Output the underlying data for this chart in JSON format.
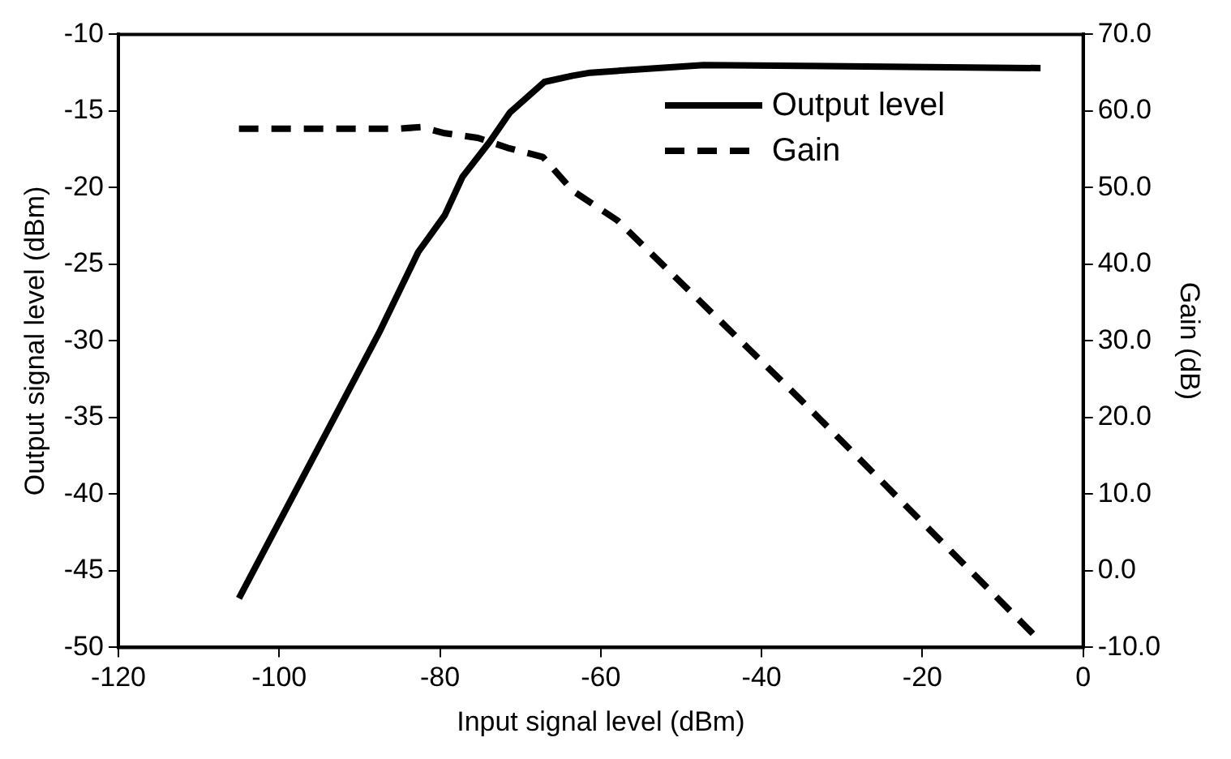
{
  "chart_data": {
    "type": "line",
    "xlabel": "Input signal level (dBm)",
    "ylabel": "Output signal level (dBm)",
    "y2label": "Gain (dB)",
    "xlim": [
      -120,
      0
    ],
    "xticks": [
      -120,
      -100,
      -80,
      -60,
      -40,
      -20,
      0
    ],
    "ylim": [
      -50,
      -10
    ],
    "yticks": [
      -50,
      -45,
      -40,
      -35,
      -30,
      -25,
      -20,
      -15,
      -10
    ],
    "y2lim": [
      -10,
      70
    ],
    "y2ticks": [
      {
        "value": -10,
        "label": "-10.0"
      },
      {
        "value": 0,
        "label": "0.0"
      },
      {
        "value": 10,
        "label": "10.0"
      },
      {
        "value": 20,
        "label": "20.0"
      },
      {
        "value": 30,
        "label": "30.0"
      },
      {
        "value": 40,
        "label": "40.0"
      },
      {
        "value": 50,
        "label": "50.0"
      },
      {
        "value": 60,
        "label": "60.0"
      },
      {
        "value": 70,
        "label": "70.0"
      }
    ],
    "grid": false,
    "legend": "top right",
    "marker": "none",
    "series": [
      {
        "name": "Output level",
        "color": "#000000",
        "line_style": "solid",
        "x": [
          -105,
          -87.6,
          -82.7,
          -79.4,
          -77.2,
          -73.8,
          -71.3,
          -67,
          -63.5,
          -61.3,
          -47.2,
          -5.3
        ],
        "values": [
          -46.8,
          -29.5,
          -24.2,
          -21.8,
          -19.3,
          -17,
          -15.1,
          -13.1,
          -12.7,
          -12.5,
          -12,
          -12.2
        ]
      },
      {
        "name": "Gain",
        "color": "#000000",
        "line_style": "dashed",
        "axis": "y2",
        "x": [
          -105,
          -85,
          -82.4,
          -79.4,
          -75.3,
          -71.6,
          -67.2,
          -63.5,
          -57.9,
          -54.2,
          -35.3,
          -5.7
        ],
        "values": [
          57.7,
          57.7,
          57.9,
          57.1,
          56.5,
          55.2,
          54,
          49.6,
          45.7,
          41.9,
          22.5,
          -8.8
        ]
      }
    ]
  }
}
